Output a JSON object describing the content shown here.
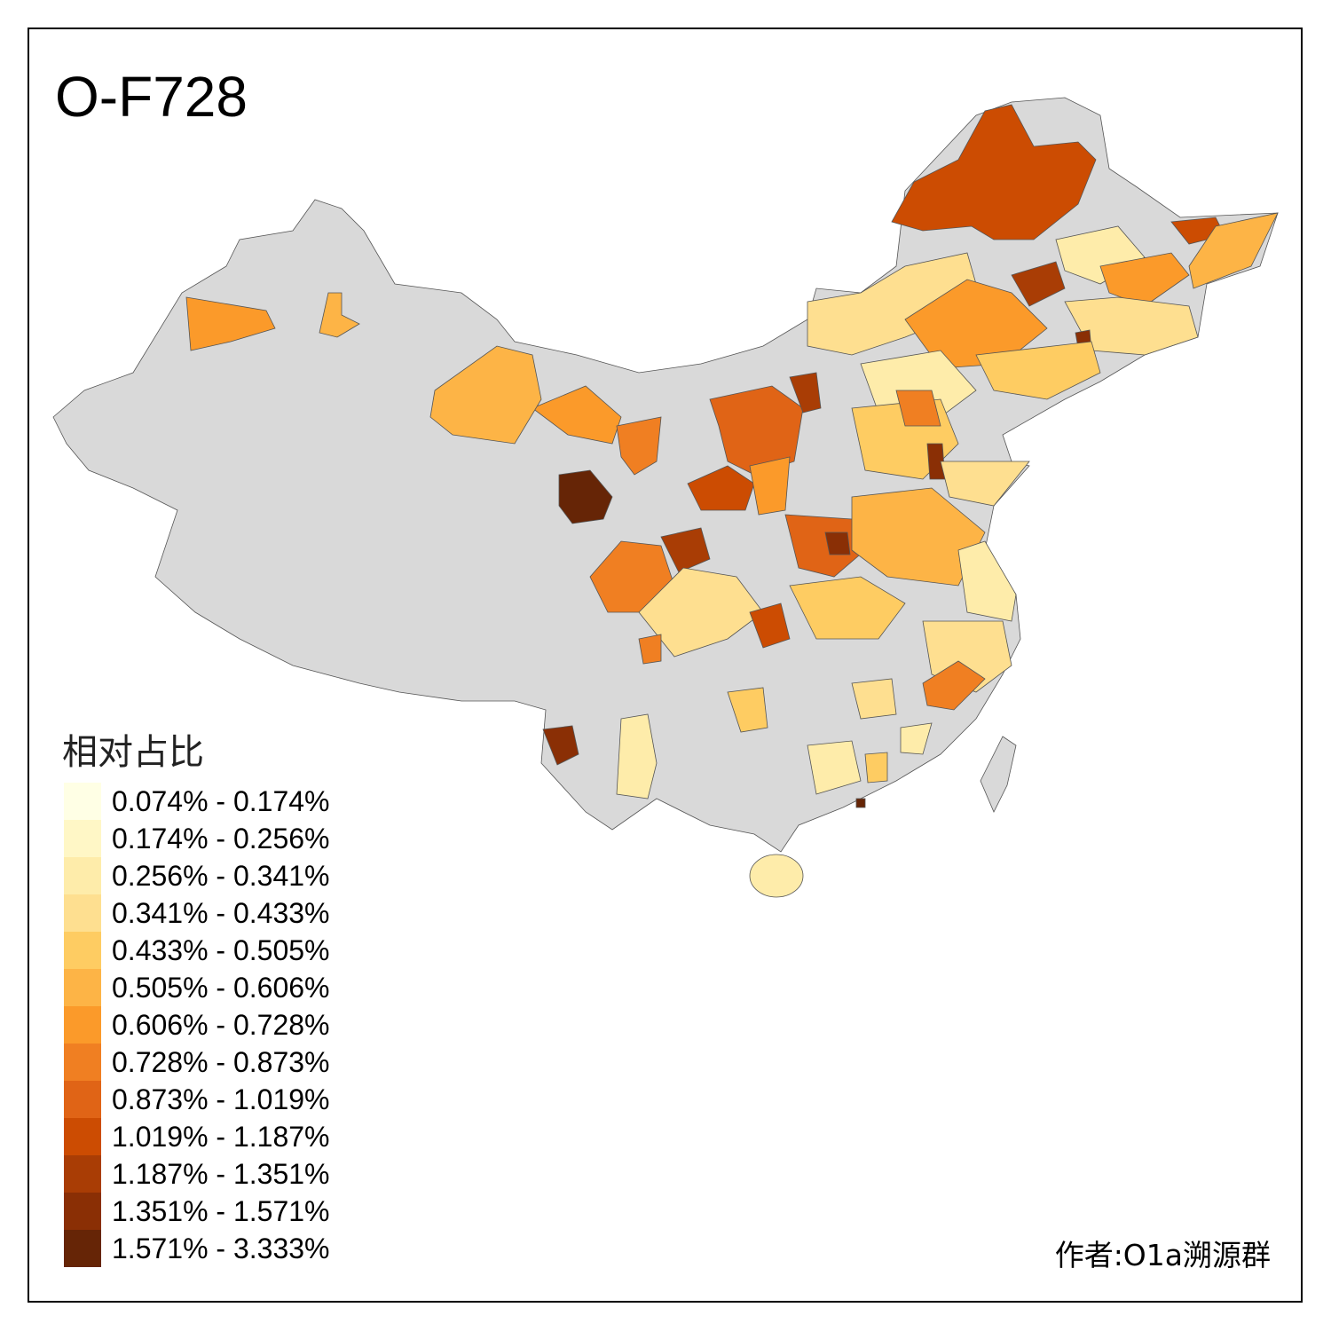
{
  "title": "O-F728",
  "legend": {
    "title": "相对占比",
    "items": [
      {
        "label": "0.074% - 0.174%",
        "color": "#FFFFE5"
      },
      {
        "label": "0.174% - 0.256%",
        "color": "#FFF7C6"
      },
      {
        "label": "0.256% - 0.341%",
        "color": "#FEECAA"
      },
      {
        "label": "0.341% - 0.433%",
        "color": "#FEDF90"
      },
      {
        "label": "0.433% - 0.505%",
        "color": "#FECC62"
      },
      {
        "label": "0.505% - 0.606%",
        "color": "#FDB446"
      },
      {
        "label": "0.606% - 0.728%",
        "color": "#FB9A2A"
      },
      {
        "label": "0.728% - 0.873%",
        "color": "#F07F22"
      },
      {
        "label": "0.873% - 1.019%",
        "color": "#E06416"
      },
      {
        "label": "1.019% - 1.187%",
        "color": "#CC4C02"
      },
      {
        "label": "1.187% - 1.351%",
        "color": "#A93D05"
      },
      {
        "label": "1.351% - 1.571%",
        "color": "#8A2F05"
      },
      {
        "label": "1.571% - 3.333%",
        "color": "#662506"
      }
    ]
  },
  "no_data_color": "#D9D9D9",
  "author": "作者:O1a溯源群"
}
